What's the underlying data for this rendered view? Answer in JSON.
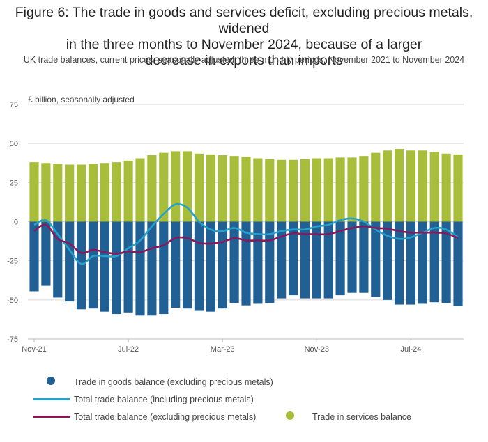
{
  "title": "Figure 6: The trade in goods and services deficit, excluding precious metals, widened in the three months to November 2024, because of a larger decrease in exports than imports",
  "subtitle": "UK trade balances, current prices, seasonally adjusted, three-monthly periods, November 2021 to November 2024",
  "chart_data": {
    "type": "bar",
    "unit_label": "£ billion, seasonally adjusted",
    "ylim": [
      -75,
      75
    ],
    "y_ticks": [
      75,
      50,
      25,
      0,
      -25,
      -50,
      -75
    ],
    "y_tick_labels": [
      "75",
      "50",
      "25",
      "0",
      "-25",
      "-50",
      "-75"
    ],
    "x_tick_indices": [
      0,
      8,
      16,
      24,
      32
    ],
    "x_tick_labels": [
      "Nov-21",
      "Jul-22",
      "Mar-23",
      "Nov-23",
      "Jul-24"
    ],
    "grid": true,
    "stacked": true,
    "categories": [
      "Nov-21",
      "Dec-21",
      "Jan-22",
      "Feb-22",
      "Mar-22",
      "Apr-22",
      "May-22",
      "Jun-22",
      "Jul-22",
      "Aug-22",
      "Sep-22",
      "Oct-22",
      "Nov-22",
      "Dec-22",
      "Jan-23",
      "Feb-23",
      "Mar-23",
      "Apr-23",
      "May-23",
      "Jun-23",
      "Jul-23",
      "Aug-23",
      "Sep-23",
      "Oct-23",
      "Nov-23",
      "Dec-23",
      "Jan-24",
      "Feb-24",
      "Mar-24",
      "Apr-24",
      "May-24",
      "Jun-24",
      "Jul-24",
      "Aug-24",
      "Sep-24",
      "Oct-24",
      "Nov-24"
    ],
    "series": [
      {
        "name": "Trade in goods balance (excluding precious metals)",
        "kind": "bar",
        "color": "#206095",
        "values": [
          -44.5,
          -41,
          -48.5,
          -51,
          -56,
          -55.5,
          -57.5,
          -59,
          -58,
          -60,
          -60,
          -59,
          -55,
          -55.5,
          -57,
          -57.5,
          -55.5,
          -52,
          -53.5,
          -52.5,
          -52,
          -49,
          -47,
          -49,
          -49,
          -49,
          -47,
          -45.5,
          -45.5,
          -48,
          -50,
          -53,
          -53,
          -52.5,
          -51.5,
          -52,
          -54
        ]
      },
      {
        "name": "Trade in services balance",
        "kind": "bar",
        "color": "#a8bd3a",
        "values": [
          38,
          37.5,
          37,
          36.5,
          36.5,
          37,
          37.5,
          38,
          39,
          40.5,
          42.5,
          44,
          45,
          45,
          43.5,
          43,
          42.5,
          42,
          41.5,
          40.5,
          40,
          39.5,
          39.5,
          40,
          40.5,
          40.5,
          41,
          41,
          42,
          44,
          45.5,
          46.5,
          45.5,
          45.5,
          44.5,
          43.5,
          43
        ]
      },
      {
        "name": "Total trade balance (including precious metals)",
        "kind": "line",
        "color": "#27a0cc",
        "values": [
          -2,
          1,
          -8,
          -18,
          -27,
          -22,
          -22,
          -22,
          -17,
          -12,
          -3,
          5,
          11,
          9,
          0,
          -5,
          -6,
          -4,
          -7,
          -8,
          -8,
          -6,
          -5,
          -5,
          -3,
          -2,
          1,
          2,
          0,
          -5,
          -9,
          -11,
          -10,
          -7,
          -4,
          -5,
          -10
        ]
      },
      {
        "name": "Total trade balance (excluding precious metals)",
        "kind": "line",
        "color": "#871a5b",
        "values": [
          -6,
          -2,
          -11,
          -14,
          -20,
          -18,
          -19.5,
          -20.5,
          -19,
          -19.5,
          -17,
          -15,
          -10.5,
          -10.5,
          -13.5,
          -14,
          -13,
          -10.5,
          -12,
          -12,
          -12,
          -9.5,
          -7.5,
          -8,
          -8,
          -8,
          -6,
          -4,
          -3,
          -4,
          -4.5,
          -6,
          -7,
          -7,
          -7,
          -7.5,
          -10.5
        ]
      }
    ],
    "legend_placement": "bottom"
  },
  "legend": [
    {
      "label": "Trade in goods balance (excluding precious metals)",
      "color": "#206095",
      "marker": "circle"
    },
    {
      "label": "Total trade balance (including precious metals)",
      "color": "#27a0cc",
      "marker": "line"
    },
    {
      "label": "Total trade balance (excluding precious metals)",
      "color": "#871a5b",
      "marker": "line"
    },
    {
      "label": "Trade in services balance",
      "color": "#a8bd3a",
      "marker": "circle"
    }
  ]
}
